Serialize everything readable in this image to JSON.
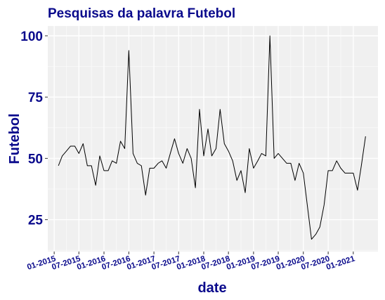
{
  "chart_data": {
    "type": "line",
    "title": "Pesquisas da palavra Futebol",
    "xlabel": "date",
    "ylabel": "Futebol",
    "y_ticks": [
      25,
      50,
      75,
      100
    ],
    "x_tick_labels": [
      "01-2015",
      "07-2015",
      "01-2016",
      "07-2016",
      "01-2017",
      "07-2017",
      "01-2018",
      "07-2018",
      "01-2019",
      "07-2019",
      "01-2020",
      "07-2020",
      "01-2021"
    ],
    "x_tick_dates": [
      "2015-01-01",
      "2015-07-01",
      "2016-01-01",
      "2016-07-01",
      "2017-01-01",
      "2017-07-01",
      "2018-01-01",
      "2018-07-01",
      "2019-01-01",
      "2019-07-01",
      "2020-01-01",
      "2020-07-01",
      "2021-01-01"
    ],
    "xlim": [
      "2014-11-15",
      "2021-07-01"
    ],
    "ylim": [
      12,
      104
    ],
    "grid": true,
    "background": "#f0f0f0",
    "line_color": "#000000",
    "series": [
      {
        "x": [
          "2015-02-01",
          "2015-03-01",
          "2015-04-01",
          "2015-05-01",
          "2015-06-01",
          "2015-07-01",
          "2015-08-01",
          "2015-09-01",
          "2015-10-01",
          "2015-11-01",
          "2015-12-01",
          "2016-01-01",
          "2016-02-01",
          "2016-03-01",
          "2016-04-01",
          "2016-05-01",
          "2016-06-01",
          "2016-07-01",
          "2016-08-01",
          "2016-09-01",
          "2016-10-01",
          "2016-11-01",
          "2016-12-01",
          "2017-01-01",
          "2017-02-01",
          "2017-03-01",
          "2017-04-01",
          "2017-05-01",
          "2017-06-01",
          "2017-07-01",
          "2017-08-01",
          "2017-09-01",
          "2017-10-01",
          "2017-11-01",
          "2017-12-01",
          "2018-01-01",
          "2018-02-01",
          "2018-03-01",
          "2018-04-01",
          "2018-05-01",
          "2018-06-01",
          "2018-07-01",
          "2018-08-01",
          "2018-09-01",
          "2018-10-01",
          "2018-11-01",
          "2018-12-01",
          "2019-01-01",
          "2019-02-01",
          "2019-03-01",
          "2019-04-01",
          "2019-05-01",
          "2019-06-01",
          "2019-07-01",
          "2019-08-01",
          "2019-09-01",
          "2019-10-01",
          "2019-11-01",
          "2019-12-01",
          "2020-01-01",
          "2020-02-01",
          "2020-03-01",
          "2020-04-01",
          "2020-05-01",
          "2020-06-01",
          "2020-07-01",
          "2020-08-01",
          "2020-09-01",
          "2020-10-01",
          "2020-11-01",
          "2020-12-01",
          "2021-01-01",
          "2021-02-01",
          "2021-03-01",
          "2021-04-01"
        ],
        "y": [
          47,
          51,
          53,
          55,
          55,
          52,
          56,
          47,
          47,
          39,
          51,
          45,
          45,
          49,
          48,
          57,
          54,
          94,
          52,
          48,
          47,
          35,
          46,
          46,
          48,
          49,
          46,
          52,
          58,
          52,
          48,
          54,
          50,
          38,
          70,
          51,
          62,
          51,
          54,
          70,
          56,
          53,
          49,
          41,
          45,
          36,
          54,
          46,
          49,
          52,
          51,
          100,
          50,
          52,
          50,
          48,
          48,
          41,
          48,
          44,
          30,
          17,
          19,
          22,
          31,
          45,
          45,
          49,
          46,
          44,
          44,
          44,
          37,
          47,
          59
        ]
      }
    ]
  }
}
